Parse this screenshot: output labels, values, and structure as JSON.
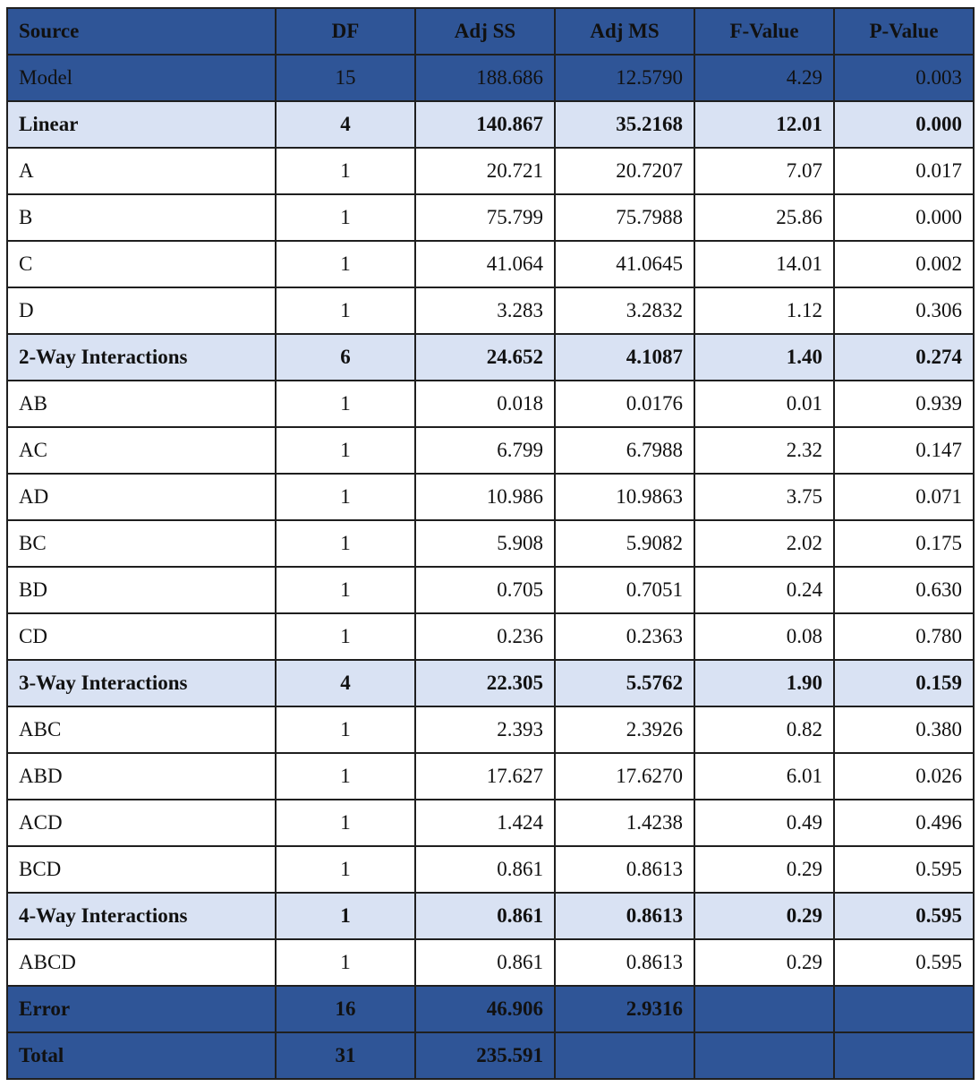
{
  "colors": {
    "header_bg": "#2f5597",
    "group_bg": "#d9e2f3",
    "header_text": "#ffffff",
    "body_text": "#111111"
  },
  "table": {
    "headers": [
      "Source",
      "DF",
      "Adj SS",
      "Adj MS",
      "F-Value",
      "P-Value"
    ],
    "rows": [
      {
        "kind": "model",
        "cells": [
          "Model",
          "15",
          "188.686",
          "12.5790",
          "4.29",
          "0.003"
        ]
      },
      {
        "kind": "group",
        "cells": [
          "Linear",
          "4",
          "140.867",
          "35.2168",
          "12.01",
          "0.000"
        ]
      },
      {
        "kind": "term",
        "cells": [
          "A",
          "1",
          "20.721",
          "20.7207",
          "7.07",
          "0.017"
        ]
      },
      {
        "kind": "term",
        "cells": [
          "B",
          "1",
          "75.799",
          "75.7988",
          "25.86",
          "0.000"
        ]
      },
      {
        "kind": "term",
        "cells": [
          "C",
          "1",
          "41.064",
          "41.0645",
          "14.01",
          "0.002"
        ]
      },
      {
        "kind": "term",
        "cells": [
          "D",
          "1",
          "3.283",
          "3.2832",
          "1.12",
          "0.306"
        ]
      },
      {
        "kind": "group",
        "cells": [
          "2-Way Interactions",
          "6",
          "24.652",
          "4.1087",
          "1.40",
          "0.274"
        ]
      },
      {
        "kind": "term",
        "cells": [
          "AB",
          "1",
          "0.018",
          "0.0176",
          "0.01",
          "0.939"
        ]
      },
      {
        "kind": "term",
        "cells": [
          "AC",
          "1",
          "6.799",
          "6.7988",
          "2.32",
          "0.147"
        ]
      },
      {
        "kind": "term",
        "cells": [
          "AD",
          "1",
          "10.986",
          "10.9863",
          "3.75",
          "0.071"
        ]
      },
      {
        "kind": "term",
        "cells": [
          "BC",
          "1",
          "5.908",
          "5.9082",
          "2.02",
          "0.175"
        ]
      },
      {
        "kind": "term",
        "cells": [
          "BD",
          "1",
          "0.705",
          "0.7051",
          "0.24",
          "0.630"
        ]
      },
      {
        "kind": "term",
        "cells": [
          "CD",
          "1",
          "0.236",
          "0.2363",
          "0.08",
          "0.780"
        ]
      },
      {
        "kind": "group",
        "cells": [
          "3-Way Interactions",
          "4",
          "22.305",
          "5.5762",
          "1.90",
          "0.159"
        ]
      },
      {
        "kind": "term",
        "cells": [
          "ABC",
          "1",
          "2.393",
          "2.3926",
          "0.82",
          "0.380"
        ]
      },
      {
        "kind": "term",
        "cells": [
          "ABD",
          "1",
          "17.627",
          "17.6270",
          "6.01",
          "0.026"
        ]
      },
      {
        "kind": "term",
        "cells": [
          "ACD",
          "1",
          "1.424",
          "1.4238",
          "0.49",
          "0.496"
        ]
      },
      {
        "kind": "term",
        "cells": [
          "BCD",
          "1",
          "0.861",
          "0.8613",
          "0.29",
          "0.595"
        ]
      },
      {
        "kind": "group",
        "cells": [
          "4-Way Interactions",
          "1",
          "0.861",
          "0.8613",
          "0.29",
          "0.595"
        ]
      },
      {
        "kind": "term",
        "cells": [
          "ABCD",
          "1",
          "0.861",
          "0.8613",
          "0.29",
          "0.595"
        ]
      },
      {
        "kind": "dark-bold",
        "cells": [
          "Error",
          "16",
          "46.906",
          "2.9316",
          "",
          ""
        ]
      },
      {
        "kind": "dark-bold",
        "cells": [
          "Total",
          "31",
          "235.591",
          "",
          "",
          ""
        ]
      }
    ]
  }
}
